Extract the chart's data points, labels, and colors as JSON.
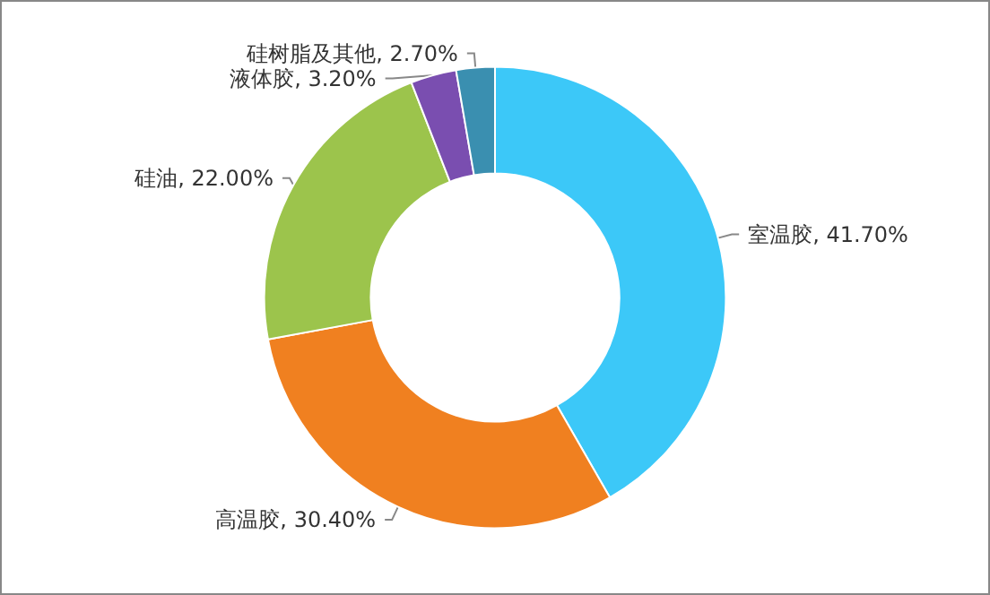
{
  "chart_data": {
    "type": "donut",
    "categories": [
      "室温胶",
      "高温胶",
      "硅油",
      "液体胶",
      "硅树脂及其他"
    ],
    "values": [
      41.7,
      30.4,
      22.0,
      3.2,
      2.7
    ],
    "value_labels": [
      "41.70%",
      "30.40%",
      "22.00%",
      "3.20%",
      "2.70%"
    ],
    "colors": [
      "#3cc8f8",
      "#f08020",
      "#9cc44c",
      "#7a4eb0",
      "#3a8fb0"
    ],
    "legend": false
  }
}
